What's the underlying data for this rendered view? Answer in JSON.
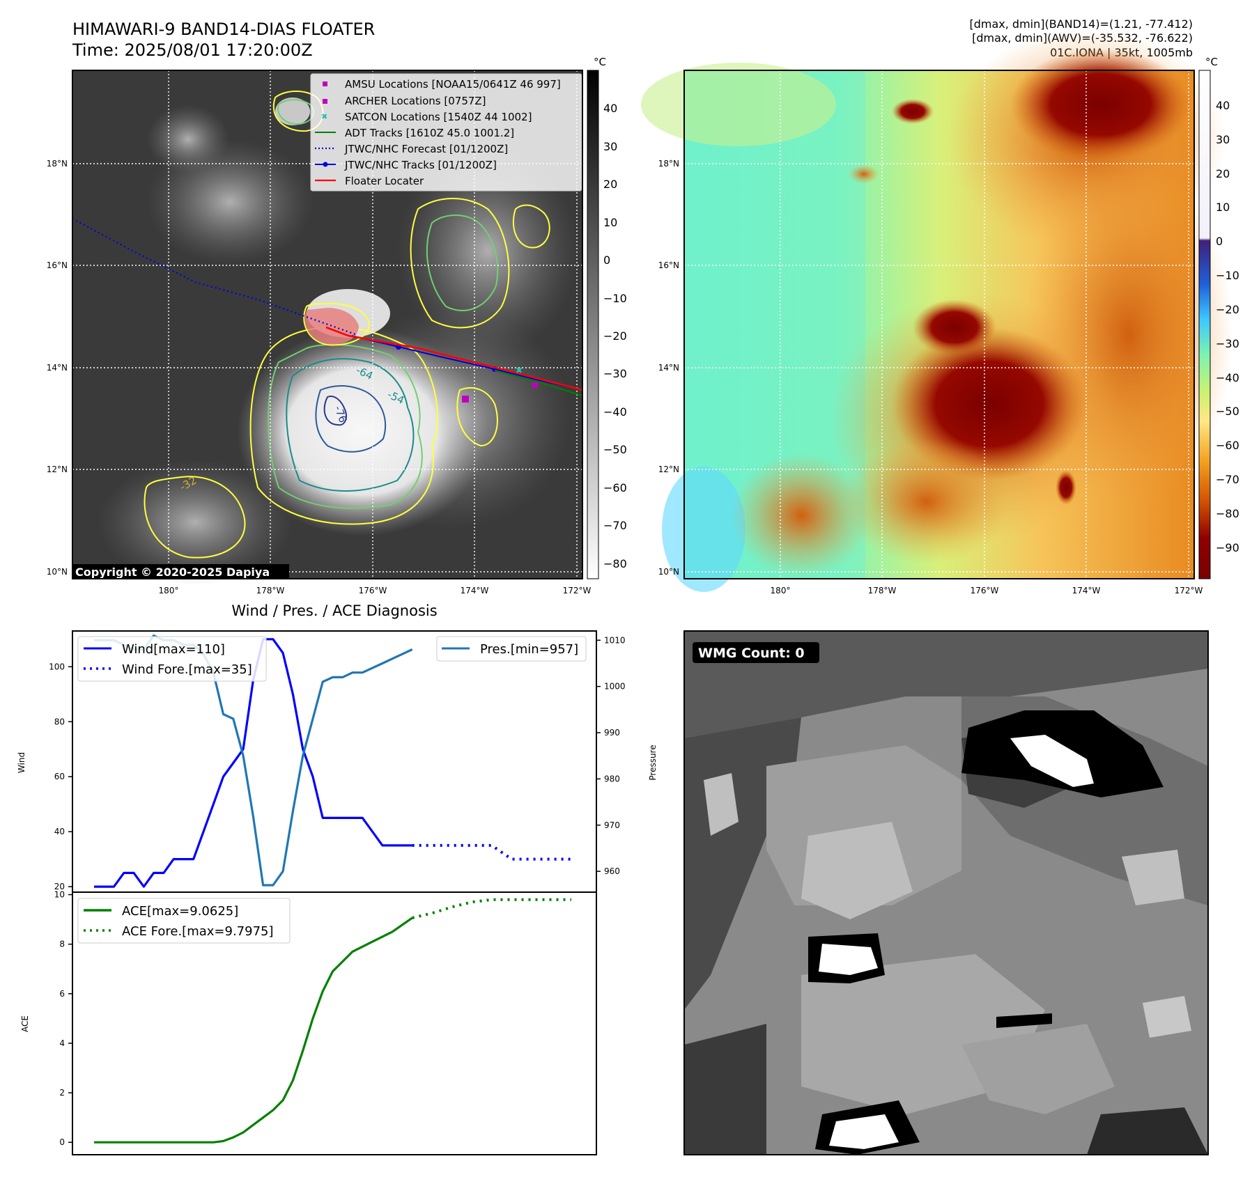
{
  "header": {
    "title": "HIMAWARI-9 BAND14-DIAS FLOATER",
    "time": "Time: 2025/08/01 17:20:00Z",
    "stat1": "[dmax, dmin](BAND14)=(1.21, -77.412)",
    "stat2": "[dmax, dmin](AWV)=(-35.532, -76.622)",
    "storm": "01C.IONA | 35kt, 1005mb"
  },
  "map": {
    "lat_labels": [
      "18°N",
      "16°N",
      "14°N",
      "12°N",
      "10°N"
    ],
    "lon_labels": [
      "180°",
      "178°W",
      "176°W",
      "174°W",
      "172°W"
    ],
    "copyright": "Copyright © 2020-2025 Dapiya",
    "contour_labels": [
      "-64",
      "-54",
      "-76",
      "-32"
    ],
    "legend": [
      {
        "label": "AMSU Locations [NOAA15/0641Z 46 997]",
        "color": "#c000c0",
        "marker": "square"
      },
      {
        "label": "ARCHER Locations [0757Z]",
        "color": "#c000c0",
        "marker": "square"
      },
      {
        "label": "SATCON Locations [1540Z 44 1002]",
        "color": "#20c0b0",
        "marker": "x"
      },
      {
        "label": "ADT Tracks [1610Z 45.0 1001.2]",
        "color": "#008000",
        "marker": "line"
      },
      {
        "label": "JTWC/NHC Forecast [01/1200Z]",
        "color": "#0000dd",
        "marker": "dotted"
      },
      {
        "label": "JTWC/NHC Tracks [01/1200Z]",
        "color": "#0000dd",
        "marker": "line-dot"
      },
      {
        "label": "Floater Locater",
        "color": "#ff0000",
        "marker": "line"
      }
    ]
  },
  "colorbar1": {
    "unit": "°C",
    "ticks": [
      "40",
      "30",
      "20",
      "10",
      "0",
      "−10",
      "−20",
      "−30",
      "−40",
      "−50",
      "−60",
      "−70",
      "−80"
    ]
  },
  "colorbar2": {
    "unit": "°C",
    "ticks": [
      "40",
      "30",
      "20",
      "10",
      "0",
      "−10",
      "−20",
      "−30",
      "−40",
      "−50",
      "−60",
      "−70",
      "−80",
      "−90"
    ]
  },
  "wmg": {
    "label": "WMG Count: 0"
  },
  "chart_data": [
    {
      "type": "line",
      "title": "Wind / Pres. / ACE Diagnosis",
      "ylabel": "Wind",
      "ylim": [
        18,
        113
      ],
      "yticks": [
        20,
        40,
        60,
        80,
        100
      ],
      "y2label": "Pressure",
      "y2lim": [
        955.5,
        1012
      ],
      "y2ticks": [
        960,
        970,
        980,
        990,
        1000,
        1010
      ],
      "series": [
        {
          "name": "Wind[max=110]",
          "axis": "left",
          "color": "#0000ff",
          "style": "solid",
          "x": [
            0,
            1,
            2,
            3,
            4,
            5,
            6,
            7,
            8,
            9,
            10,
            11,
            12,
            13,
            14,
            15,
            16,
            17,
            18,
            19,
            20,
            21,
            22,
            23,
            24,
            25,
            26,
            27,
            28,
            29,
            30,
            31,
            32
          ],
          "y": [
            20,
            20,
            20,
            25,
            25,
            20,
            25,
            25,
            30,
            30,
            30,
            40,
            50,
            60,
            65,
            70,
            95,
            110,
            110,
            105,
            90,
            70,
            60,
            45,
            45,
            45,
            45,
            45,
            40,
            35,
            35,
            35,
            35
          ]
        },
        {
          "name": "Wind Fore.[max=35]",
          "axis": "left",
          "color": "#0000ff",
          "style": "dotted",
          "x": [
            32,
            34,
            36,
            38,
            40,
            42,
            44,
            46,
            48
          ],
          "y": [
            35,
            35,
            35,
            35,
            35,
            30,
            30,
            30,
            30
          ]
        },
        {
          "name": "Pres.[min=957]",
          "axis": "right",
          "color": "#1f77b4",
          "style": "solid",
          "x": [
            0,
            1,
            2,
            3,
            4,
            5,
            6,
            7,
            8,
            9,
            10,
            11,
            12,
            13,
            14,
            15,
            16,
            17,
            18,
            19,
            20,
            21,
            22,
            23,
            24,
            25,
            26,
            27,
            28,
            29,
            30,
            31,
            32
          ],
          "y": [
            1010,
            1010,
            1010,
            1009,
            1008,
            1008,
            1011,
            1010,
            1010,
            1009,
            1009,
            1007,
            1003,
            994,
            993,
            985,
            972,
            957,
            957,
            960,
            973,
            985,
            993,
            1001,
            1002,
            1002,
            1003,
            1003,
            1004,
            1005,
            1006,
            1007,
            1008
          ]
        }
      ]
    },
    {
      "type": "line",
      "ylabel": "ACE",
      "ylim": [
        -0.5,
        10.1
      ],
      "yticks": [
        0,
        2,
        4,
        6,
        8,
        10
      ],
      "series": [
        {
          "name": "ACE[max=9.0625]",
          "color": "#008000",
          "style": "solid",
          "x": [
            0,
            2,
            4,
            6,
            8,
            10,
            12,
            13,
            14,
            15,
            16,
            17,
            18,
            19,
            20,
            21,
            22,
            23,
            24,
            26,
            28,
            30,
            32
          ],
          "y": [
            0,
            0,
            0,
            0,
            0,
            0,
            0,
            0.05,
            0.2,
            0.4,
            0.7,
            1.0,
            1.3,
            1.7,
            2.5,
            3.7,
            5.0,
            6.1,
            6.9,
            7.7,
            8.1,
            8.5,
            9.0625
          ]
        },
        {
          "name": "ACE Fore.[max=9.7975]",
          "color": "#008000",
          "style": "dotted",
          "x": [
            32,
            34,
            36,
            38,
            40,
            42,
            44,
            46,
            48
          ],
          "y": [
            9.0625,
            9.25,
            9.5,
            9.7,
            9.7975,
            9.7975,
            9.7975,
            9.7975,
            9.7975
          ]
        }
      ]
    }
  ]
}
